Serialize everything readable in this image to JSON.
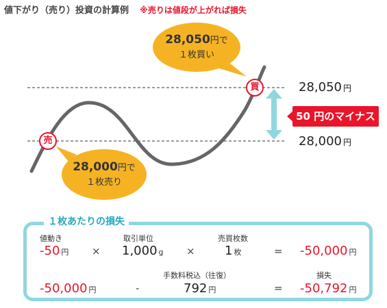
{
  "title": "値下がり（売り）投資の計算例",
  "note": "※売りは値段が上がれば損失",
  "price_high": "28,050",
  "price_low": "28,000",
  "yen": "円",
  "sell_marker": "売",
  "buy_marker": "買",
  "bubble_buy": {
    "line1_num": "28,050",
    "line1_unit": "円で",
    "line2": "１枚買い"
  },
  "bubble_sell": {
    "line1_num": "28,000",
    "line1_unit": "円で",
    "line2": "１枚売り"
  },
  "minus_label": "50 円のマイナス",
  "calc": {
    "box_title": "１枚あたりの損失",
    "row1": {
      "h1": "値動き",
      "v1": "-50",
      "u1": "円",
      "op1": "×",
      "h2": "取引単位",
      "v2": "1,000",
      "u2": "g",
      "op2": "×",
      "h3": "売買枚数",
      "v3": "1",
      "u3": "枚",
      "op3": "=",
      "v4": "-50,000",
      "u4": "円"
    },
    "row2": {
      "v1": "-50,000",
      "u1": "円",
      "op1": "-",
      "h2": "手数料税込（往復）",
      "v2": "792",
      "u2": "円",
      "op2": "=",
      "h3": "損失",
      "v3": "-50,792",
      "u3": "円"
    }
  }
}
